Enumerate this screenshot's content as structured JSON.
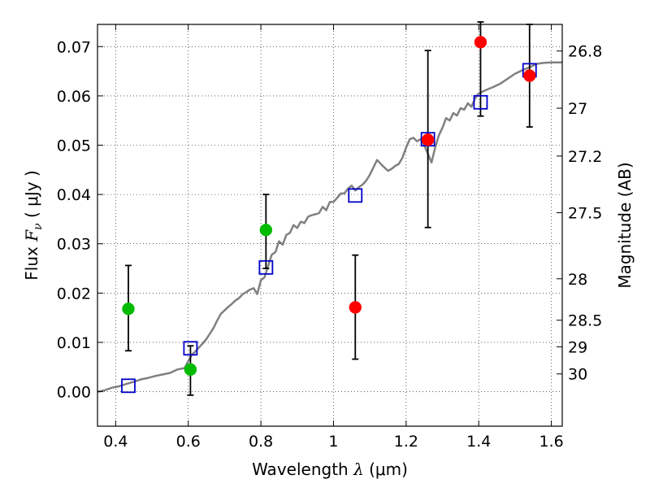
{
  "chart_data": {
    "type": "scatter",
    "xlabel": {
      "prefix": "Wavelength",
      "symbol": "λ",
      "unit": "(μm)"
    },
    "ylabel": {
      "prefix": "Flux",
      "symbol": "F",
      "subscript": "ν",
      "unit": "( μJy )"
    },
    "right_ylabel": "Magnitude (AB)",
    "xlim": [
      0.35,
      1.63
    ],
    "ylim": [
      -0.007,
      0.0745
    ],
    "grid": true,
    "x_ticks": [
      0.4,
      0.6,
      0.8,
      1.0,
      1.2,
      1.4,
      1.6
    ],
    "x_tick_labels": [
      "0.4",
      "0.6",
      "0.8",
      "1",
      "1.2",
      "1.4",
      "1.6"
    ],
    "y_ticks": [
      0.0,
      0.01,
      0.02,
      0.03,
      0.04,
      0.05,
      0.06,
      0.07
    ],
    "y_tick_labels": [
      "0.00",
      "0.01",
      "0.02",
      "0.03",
      "0.04",
      "0.05",
      "0.06",
      "0.07"
    ],
    "right_ticks": [
      {
        "label": "26.8",
        "flux": 0.0691
      },
      {
        "label": "27",
        "flux": 0.0575
      },
      {
        "label": "27.2",
        "flux": 0.0478
      },
      {
        "label": "27.5",
        "flux": 0.0363
      },
      {
        "label": "28",
        "flux": 0.0229
      },
      {
        "label": "28.5",
        "flux": 0.0145
      },
      {
        "label": "29",
        "flux": 0.0091
      },
      {
        "label": "30",
        "flux": 0.0036
      }
    ],
    "model_sed": {
      "color": "#808080",
      "x": [
        0.35,
        0.37,
        0.39,
        0.41,
        0.43,
        0.45,
        0.47,
        0.49,
        0.51,
        0.53,
        0.55,
        0.57,
        0.59,
        0.6,
        0.61,
        0.62,
        0.63,
        0.64,
        0.65,
        0.66,
        0.67,
        0.68,
        0.69,
        0.7,
        0.71,
        0.72,
        0.73,
        0.74,
        0.75,
        0.76,
        0.77,
        0.78,
        0.79,
        0.8,
        0.81,
        0.82,
        0.83,
        0.84,
        0.85,
        0.86,
        0.87,
        0.88,
        0.89,
        0.9,
        0.91,
        0.92,
        0.93,
        0.94,
        0.95,
        0.96,
        0.97,
        0.98,
        0.99,
        1.0,
        1.01,
        1.02,
        1.03,
        1.04,
        1.05,
        1.06,
        1.07,
        1.08,
        1.09,
        1.1,
        1.11,
        1.12,
        1.13,
        1.14,
        1.15,
        1.16,
        1.17,
        1.18,
        1.19,
        1.2,
        1.21,
        1.22,
        1.23,
        1.24,
        1.25,
        1.26,
        1.27,
        1.28,
        1.29,
        1.3,
        1.31,
        1.32,
        1.33,
        1.34,
        1.35,
        1.36,
        1.37,
        1.38,
        1.39,
        1.4,
        1.42,
        1.44,
        1.46,
        1.48,
        1.5,
        1.52,
        1.54,
        1.56,
        1.58,
        1.6,
        1.63
      ],
      "y": [
        0.0,
        0.0003,
        0.0008,
        0.0011,
        0.0016,
        0.002,
        0.0025,
        0.0028,
        0.0032,
        0.0035,
        0.0038,
        0.0045,
        0.0048,
        0.0062,
        0.0075,
        0.0082,
        0.009,
        0.0098,
        0.0107,
        0.0118,
        0.013,
        0.0145,
        0.0158,
        0.0165,
        0.0172,
        0.0178,
        0.0185,
        0.019,
        0.0198,
        0.0202,
        0.0207,
        0.021,
        0.0198,
        0.0226,
        0.0232,
        0.0255,
        0.0278,
        0.0283,
        0.0305,
        0.0298,
        0.0318,
        0.0322,
        0.0338,
        0.0332,
        0.0345,
        0.0342,
        0.0355,
        0.0358,
        0.036,
        0.0362,
        0.0375,
        0.0368,
        0.0385,
        0.0385,
        0.0393,
        0.0402,
        0.0402,
        0.0412,
        0.0418,
        0.0408,
        0.0415,
        0.042,
        0.0428,
        0.044,
        0.0455,
        0.047,
        0.0462,
        0.0455,
        0.0448,
        0.0452,
        0.0458,
        0.0462,
        0.0475,
        0.0495,
        0.0512,
        0.0515,
        0.0508,
        0.0512,
        0.05,
        0.0482,
        0.0465,
        0.0495,
        0.052,
        0.0535,
        0.0555,
        0.055,
        0.0565,
        0.056,
        0.0575,
        0.0572,
        0.0585,
        0.0578,
        0.0595,
        0.0605,
        0.0612,
        0.0618,
        0.0625,
        0.0635,
        0.0645,
        0.0652,
        0.0658,
        0.0665,
        0.0667,
        0.0668,
        0.0668
      ]
    },
    "model_photometry": {
      "marker": "open-square",
      "color": "#0000cc",
      "x": [
        0.435,
        0.606,
        0.814,
        1.06,
        1.26,
        1.405,
        1.54
      ],
      "y": [
        0.0012,
        0.0088,
        0.0252,
        0.0398,
        0.0512,
        0.0587,
        0.0652
      ]
    },
    "observed_green": {
      "color": "#00bb00",
      "x": [
        0.435,
        0.606,
        0.814
      ],
      "y": [
        0.0168,
        0.0045,
        0.0328
      ],
      "err_low": [
        0.0085,
        0.0052,
        0.0078
      ],
      "err_high": [
        0.0088,
        0.0048,
        0.0072
      ]
    },
    "observed_red": {
      "color": "#ff0000",
      "x": [
        1.06,
        1.26,
        1.405,
        1.54
      ],
      "y": [
        0.0171,
        0.0511,
        0.0709,
        0.0641
      ],
      "err_low": [
        0.0105,
        0.0178,
        0.015,
        0.0104
      ],
      "err_high": [
        0.0106,
        0.0181,
        0.0041,
        0.0104
      ]
    }
  }
}
